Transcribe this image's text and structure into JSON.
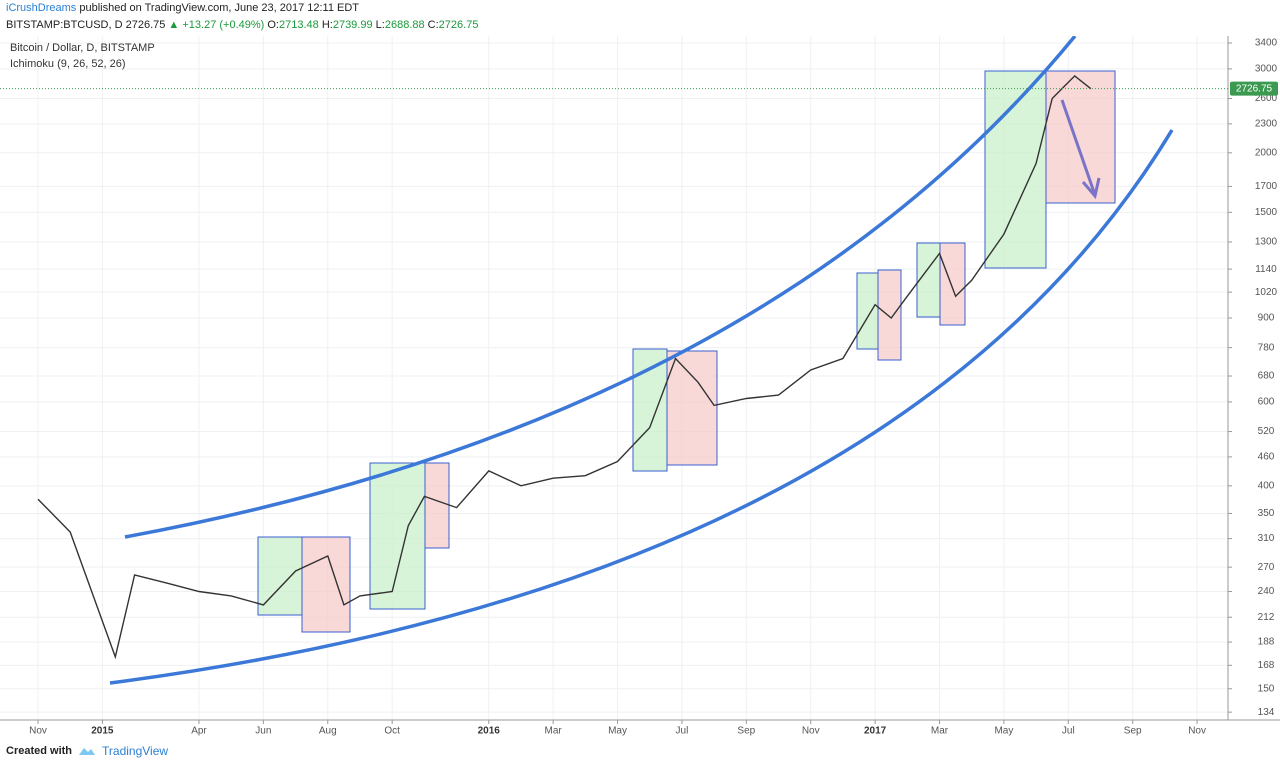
{
  "header": {
    "author": "iCrushDreams",
    "published": "published on TradingView.com, June 23, 2017 12:11 EDT",
    "symbol": "BITSTAMP:BTCUSD, D",
    "price": "2726.75",
    "change": "▲ +13.27 (+0.49%)",
    "ohlc": [
      {
        "label": "O:",
        "value": "2713.48"
      },
      {
        "label": "H:",
        "value": "2739.99"
      },
      {
        "label": "L:",
        "value": "2688.88"
      },
      {
        "label": "C:",
        "value": "2726.75"
      }
    ]
  },
  "footer": {
    "created": "Created with",
    "brand": "TradingView"
  },
  "chart_data": {
    "type": "line",
    "title": "Bitcoin / Dollar, D, BITSTAMP",
    "subtitle": "Ichimoku (9, 26, 52, 26)",
    "log_scale": true,
    "grid": true,
    "color": "#333333",
    "x": [
      0,
      1,
      2.4,
      3,
      4,
      5,
      6,
      7,
      8,
      9,
      9.5,
      10,
      11,
      11.5,
      12,
      13,
      14,
      15,
      16,
      17,
      18,
      19,
      19.8,
      20.5,
      21,
      22,
      23,
      24,
      25,
      26,
      26.5,
      27,
      28,
      28.5,
      29,
      30,
      31,
      31.5,
      32.2,
      32.7
    ],
    "values": [
      375,
      320,
      175,
      260,
      250,
      240,
      235,
      225,
      265,
      285,
      225,
      235,
      240,
      330,
      380,
      360,
      430,
      400,
      415,
      420,
      450,
      530,
      740,
      660,
      590,
      610,
      620,
      700,
      740,
      960,
      900,
      1000,
      1230,
      1000,
      1080,
      1350,
      1900,
      2600,
      2900,
      2726.75
    ],
    "last_price": 2726.75,
    "xlim": [
      -1.18,
      36.96
    ],
    "xticks": [
      {
        "value": 0,
        "label": "Nov"
      },
      {
        "value": 2,
        "label": "2015"
      },
      {
        "value": 5,
        "label": "Apr"
      },
      {
        "value": 7,
        "label": "Jun"
      },
      {
        "value": 9,
        "label": "Aug"
      },
      {
        "value": 11,
        "label": "Oct"
      },
      {
        "value": 14,
        "label": "2016"
      },
      {
        "value": 16,
        "label": "Mar"
      },
      {
        "value": 18,
        "label": "May"
      },
      {
        "value": 20,
        "label": "Jul"
      },
      {
        "value": 22,
        "label": "Sep"
      },
      {
        "value": 24,
        "label": "Nov"
      },
      {
        "value": 26,
        "label": "2017"
      },
      {
        "value": 28,
        "label": "Mar"
      },
      {
        "value": 30,
        "label": "May"
      },
      {
        "value": 32,
        "label": "Jul"
      },
      {
        "value": 34,
        "label": "Sep"
      },
      {
        "value": 36,
        "label": "Nov"
      }
    ],
    "ylim": [
      129,
      3517
    ],
    "yticks": [
      3400,
      3000,
      2600,
      2300,
      2000,
      1700,
      1500,
      1300,
      1140,
      1020,
      900,
      780,
      680,
      600,
      520,
      460,
      400,
      350,
      310,
      270,
      240,
      212,
      188,
      168,
      150,
      134
    ]
  }
}
